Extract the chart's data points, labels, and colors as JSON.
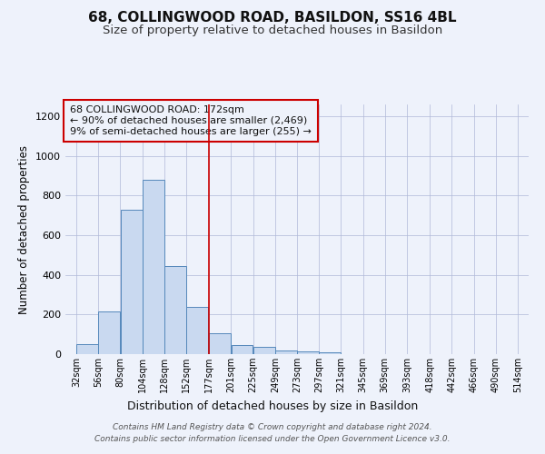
{
  "title": "68, COLLINGWOOD ROAD, BASILDON, SS16 4BL",
  "subtitle": "Size of property relative to detached houses in Basildon",
  "xlabel": "Distribution of detached houses by size in Basildon",
  "ylabel": "Number of detached properties",
  "footer1": "Contains HM Land Registry data © Crown copyright and database right 2024.",
  "footer2": "Contains public sector information licensed under the Open Government Licence v3.0.",
  "annotation_line1": "68 COLLINGWOOD ROAD: 172sqm",
  "annotation_line2": "← 90% of detached houses are smaller (2,469)",
  "annotation_line3": "9% of semi-detached houses are larger (255) →",
  "bar_left_edges": [
    32,
    56,
    80,
    104,
    128,
    152,
    177,
    201,
    225,
    249,
    273,
    297,
    321,
    345,
    369,
    393,
    418,
    442,
    466,
    490
  ],
  "bar_heights": [
    52,
    215,
    730,
    880,
    445,
    238,
    105,
    48,
    35,
    18,
    12,
    10,
    0,
    0,
    0,
    0,
    0,
    0,
    0,
    0
  ],
  "bin_width": 24,
  "tick_labels": [
    "32sqm",
    "56sqm",
    "80sqm",
    "104sqm",
    "128sqm",
    "152sqm",
    "177sqm",
    "201sqm",
    "225sqm",
    "249sqm",
    "273sqm",
    "297sqm",
    "321sqm",
    "345sqm",
    "369sqm",
    "393sqm",
    "418sqm",
    "442sqm",
    "466sqm",
    "490sqm",
    "514sqm"
  ],
  "tick_positions": [
    32,
    56,
    80,
    104,
    128,
    152,
    177,
    201,
    225,
    249,
    273,
    297,
    321,
    345,
    369,
    393,
    418,
    442,
    466,
    490,
    514
  ],
  "ylim": [
    0,
    1260
  ],
  "yticks": [
    0,
    200,
    400,
    600,
    800,
    1000,
    1200
  ],
  "xlim_left": 20,
  "xlim_right": 526,
  "bar_color": "#c9d9f0",
  "bar_edge_color": "#5588bb",
  "vline_color": "#cc0000",
  "vline_x": 177,
  "bg_color": "#eef2fb",
  "annotation_box_color": "#cc0000",
  "grid_color": "#b0b8d8",
  "title_fontsize": 11,
  "subtitle_fontsize": 9.5,
  "ylabel_fontsize": 8.5,
  "xlabel_fontsize": 9,
  "tick_fontsize": 7,
  "annotation_fontsize": 8,
  "footer_fontsize": 6.5
}
